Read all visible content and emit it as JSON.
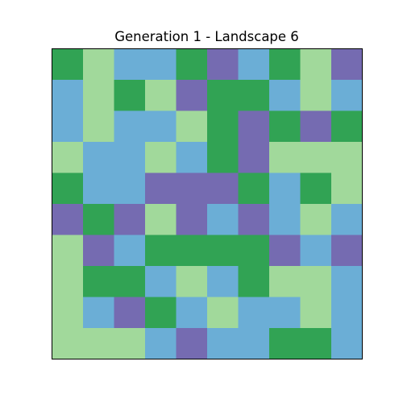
{
  "chart_data": {
    "type": "heatmap",
    "title": "Generation 1 - Landscape 6",
    "xlabel": "",
    "ylabel": "",
    "grid": false,
    "colors": {
      "0": "#a1d99b",
      "1": "#31a354",
      "2": "#6baed6",
      "3": "#756bb1"
    },
    "legend": {
      "0": "light-green",
      "1": "dark-green",
      "2": "blue",
      "3": "purple"
    },
    "rows": 10,
    "cols": 10,
    "values": [
      [
        1,
        0,
        2,
        2,
        1,
        3,
        2,
        1,
        0,
        3
      ],
      [
        2,
        0,
        1,
        0,
        3,
        1,
        1,
        2,
        0,
        2
      ],
      [
        2,
        0,
        2,
        2,
        0,
        1,
        3,
        1,
        3,
        1
      ],
      [
        0,
        2,
        2,
        0,
        2,
        1,
        3,
        0,
        0,
        0
      ],
      [
        1,
        2,
        2,
        3,
        3,
        3,
        1,
        2,
        1,
        0
      ],
      [
        3,
        1,
        3,
        0,
        3,
        2,
        3,
        2,
        0,
        2
      ],
      [
        0,
        3,
        2,
        1,
        1,
        1,
        1,
        3,
        2,
        3
      ],
      [
        0,
        1,
        1,
        2,
        0,
        2,
        1,
        0,
        0,
        2
      ],
      [
        0,
        2,
        3,
        1,
        2,
        0,
        2,
        2,
        0,
        2
      ],
      [
        0,
        0,
        0,
        2,
        3,
        2,
        2,
        1,
        1,
        2
      ]
    ]
  }
}
